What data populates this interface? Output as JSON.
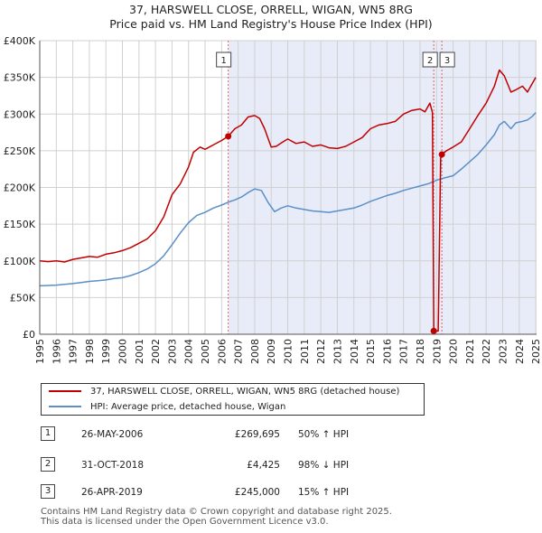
{
  "title": {
    "line1": "37, HARSWELL CLOSE, ORRELL, WIGAN, WN5 8RG",
    "line2": "Price paid vs. HM Land Registry's House Price Index (HPI)"
  },
  "colors": {
    "property": "#c00000",
    "hpi": "#5b8fc8",
    "shade": "#e8ecf8",
    "grid": "#d0d0d0"
  },
  "legend": {
    "property_label": "37, HARSWELL CLOSE, ORRELL, WIGAN, WN5 8RG (detached house)",
    "hpi_label": "HPI: Average price, detached house, Wigan"
  },
  "sales": [
    {
      "num": "1",
      "date": "26-MAY-2006",
      "price": "£269,695",
      "hpi": "50% ↑ HPI"
    },
    {
      "num": "2",
      "date": "31-OCT-2018",
      "price": "£4,425",
      "hpi": "98% ↓ HPI"
    },
    {
      "num": "3",
      "date": "26-APR-2019",
      "price": "£245,000",
      "hpi": "15% ↑ HPI"
    }
  ],
  "footer": {
    "line1": "Contains HM Land Registry data © Crown copyright and database right 2025.",
    "line2": "This data is licensed under the Open Government Licence v3.0."
  },
  "chart_data": {
    "type": "line",
    "title": "37, HARSWELL CLOSE, ORRELL, WIGAN, WN5 8RG — Price paid vs. HM Land Registry's House Price Index (HPI)",
    "xlabel": "",
    "ylabel": "",
    "xlim": [
      1995,
      2025.05
    ],
    "ylim": [
      0,
      400000
    ],
    "x_ticks": [
      "1995",
      "1996",
      "1997",
      "1998",
      "1999",
      "2000",
      "2001",
      "2002",
      "2003",
      "2004",
      "2005",
      "2006",
      "2007",
      "2008",
      "2009",
      "2010",
      "2011",
      "2012",
      "2013",
      "2014",
      "2015",
      "2016",
      "2017",
      "2018",
      "2019",
      "2020",
      "2021",
      "2022",
      "2023",
      "2024",
      "2025"
    ],
    "y_ticks": [
      {
        "value": 0,
        "label": "£0"
      },
      {
        "value": 50000,
        "label": "£50K"
      },
      {
        "value": 100000,
        "label": "£100K"
      },
      {
        "value": 150000,
        "label": "£150K"
      },
      {
        "value": 200000,
        "label": "£200K"
      },
      {
        "value": 250000,
        "label": "£250K"
      },
      {
        "value": 300000,
        "label": "£300K"
      },
      {
        "value": 350000,
        "label": "£350K"
      },
      {
        "value": 400000,
        "label": "£400K"
      }
    ],
    "grid": true,
    "shaded_range": [
      2006.4,
      2025.05
    ],
    "markers": [
      {
        "label": "1",
        "x": 2006.4,
        "y": 269695
      },
      {
        "label": "2",
        "x": 2018.83,
        "y": 4425
      },
      {
        "label": "3",
        "x": 2019.32,
        "y": 245000
      }
    ],
    "series": [
      {
        "name": "37, HARSWELL CLOSE, ORRELL, WIGAN, WN5 8RG (detached house)",
        "points": [
          [
            1995.0,
            100000
          ],
          [
            1995.5,
            99000
          ],
          [
            1996.0,
            100000
          ],
          [
            1996.5,
            98500
          ],
          [
            1997.0,
            102000
          ],
          [
            1997.5,
            104000
          ],
          [
            1998.0,
            106000
          ],
          [
            1998.5,
            105000
          ],
          [
            1999.0,
            109000
          ],
          [
            1999.5,
            111000
          ],
          [
            2000.0,
            114000
          ],
          [
            2000.5,
            118000
          ],
          [
            2001.0,
            124000
          ],
          [
            2001.5,
            130000
          ],
          [
            2002.0,
            141000
          ],
          [
            2002.5,
            160000
          ],
          [
            2003.0,
            190000
          ],
          [
            2003.5,
            205000
          ],
          [
            2004.0,
            228000
          ],
          [
            2004.3,
            248000
          ],
          [
            2004.7,
            255000
          ],
          [
            2005.0,
            252000
          ],
          [
            2005.5,
            258000
          ],
          [
            2006.0,
            264000
          ],
          [
            2006.4,
            269695
          ],
          [
            2006.8,
            280000
          ],
          [
            2007.2,
            285000
          ],
          [
            2007.6,
            296000
          ],
          [
            2008.0,
            298000
          ],
          [
            2008.3,
            294000
          ],
          [
            2008.6,
            280000
          ],
          [
            2009.0,
            255000
          ],
          [
            2009.3,
            256000
          ],
          [
            2009.7,
            262000
          ],
          [
            2010.0,
            266000
          ],
          [
            2010.5,
            260000
          ],
          [
            2011.0,
            262000
          ],
          [
            2011.5,
            256000
          ],
          [
            2012.0,
            258000
          ],
          [
            2012.5,
            254000
          ],
          [
            2013.0,
            253000
          ],
          [
            2013.5,
            256000
          ],
          [
            2014.0,
            262000
          ],
          [
            2014.5,
            268000
          ],
          [
            2015.0,
            280000
          ],
          [
            2015.5,
            285000
          ],
          [
            2016.0,
            287000
          ],
          [
            2016.5,
            290000
          ],
          [
            2017.0,
            300000
          ],
          [
            2017.5,
            305000
          ],
          [
            2018.0,
            307000
          ],
          [
            2018.3,
            303000
          ],
          [
            2018.6,
            315000
          ],
          [
            2018.75,
            302000
          ],
          [
            2018.83,
            4425
          ],
          [
            2019.1,
            4425
          ],
          [
            2019.25,
            240000
          ],
          [
            2019.32,
            245000
          ],
          [
            2019.6,
            250000
          ],
          [
            2020.0,
            255000
          ],
          [
            2020.5,
            262000
          ],
          [
            2021.0,
            280000
          ],
          [
            2021.5,
            298000
          ],
          [
            2022.0,
            315000
          ],
          [
            2022.5,
            338000
          ],
          [
            2022.8,
            360000
          ],
          [
            2023.1,
            352000
          ],
          [
            2023.5,
            330000
          ],
          [
            2023.8,
            333000
          ],
          [
            2024.2,
            338000
          ],
          [
            2024.5,
            330000
          ],
          [
            2024.8,
            342000
          ],
          [
            2025.0,
            350000
          ]
        ]
      },
      {
        "name": "HPI: Average price, detached house, Wigan",
        "points": [
          [
            1995.0,
            66000
          ],
          [
            1995.5,
            66500
          ],
          [
            1996.0,
            67000
          ],
          [
            1996.5,
            68000
          ],
          [
            1997.0,
            69000
          ],
          [
            1997.5,
            70500
          ],
          [
            1998.0,
            72000
          ],
          [
            1998.5,
            73000
          ],
          [
            1999.0,
            74000
          ],
          [
            1999.5,
            76000
          ],
          [
            2000.0,
            77000
          ],
          [
            2000.5,
            80000
          ],
          [
            2001.0,
            84000
          ],
          [
            2001.5,
            89000
          ],
          [
            2002.0,
            96000
          ],
          [
            2002.5,
            107000
          ],
          [
            2003.0,
            122000
          ],
          [
            2003.5,
            138000
          ],
          [
            2004.0,
            152000
          ],
          [
            2004.5,
            162000
          ],
          [
            2005.0,
            166000
          ],
          [
            2005.5,
            172000
          ],
          [
            2006.0,
            176000
          ],
          [
            2006.4,
            180000
          ],
          [
            2006.8,
            183000
          ],
          [
            2007.2,
            187000
          ],
          [
            2007.6,
            193000
          ],
          [
            2008.0,
            198000
          ],
          [
            2008.4,
            196000
          ],
          [
            2008.8,
            180000
          ],
          [
            2009.2,
            167000
          ],
          [
            2009.6,
            172000
          ],
          [
            2010.0,
            175000
          ],
          [
            2010.5,
            172000
          ],
          [
            2011.0,
            170000
          ],
          [
            2011.5,
            168000
          ],
          [
            2012.0,
            167000
          ],
          [
            2012.5,
            166000
          ],
          [
            2013.0,
            168000
          ],
          [
            2013.5,
            170000
          ],
          [
            2014.0,
            172000
          ],
          [
            2014.5,
            176000
          ],
          [
            2015.0,
            181000
          ],
          [
            2015.5,
            185000
          ],
          [
            2016.0,
            189000
          ],
          [
            2016.5,
            192000
          ],
          [
            2017.0,
            196000
          ],
          [
            2017.5,
            199000
          ],
          [
            2018.0,
            202000
          ],
          [
            2018.5,
            205000
          ],
          [
            2019.0,
            210000
          ],
          [
            2019.5,
            213000
          ],
          [
            2020.0,
            216000
          ],
          [
            2020.5,
            225000
          ],
          [
            2021.0,
            235000
          ],
          [
            2021.5,
            245000
          ],
          [
            2022.0,
            258000
          ],
          [
            2022.5,
            272000
          ],
          [
            2022.8,
            285000
          ],
          [
            2023.1,
            290000
          ],
          [
            2023.5,
            280000
          ],
          [
            2023.8,
            288000
          ],
          [
            2024.2,
            290000
          ],
          [
            2024.5,
            292000
          ],
          [
            2024.8,
            297000
          ],
          [
            2025.0,
            302000
          ]
        ]
      }
    ]
  }
}
